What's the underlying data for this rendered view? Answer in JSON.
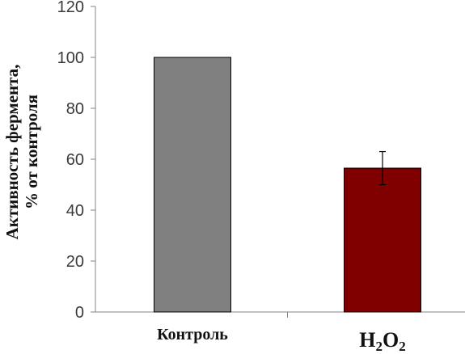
{
  "chart_data": {
    "type": "bar",
    "title": "",
    "xlabel": "",
    "ylabel_lines": [
      "Активность фермента,",
      "% от контроля"
    ],
    "categories": [
      {
        "text": "Контроль"
      },
      {
        "text": "H",
        "sub1": "2",
        "mid": "O",
        "sub2": "2"
      }
    ],
    "values": [
      100,
      56.5
    ],
    "errors": [
      null,
      6.5
    ],
    "ylim": [
      0,
      120
    ],
    "yticks": [
      0,
      20,
      40,
      60,
      80,
      100,
      120
    ],
    "bar_colors": [
      "#808080",
      "#800000"
    ],
    "bar_edge_color": "#000000",
    "grid": false,
    "legend": false
  }
}
